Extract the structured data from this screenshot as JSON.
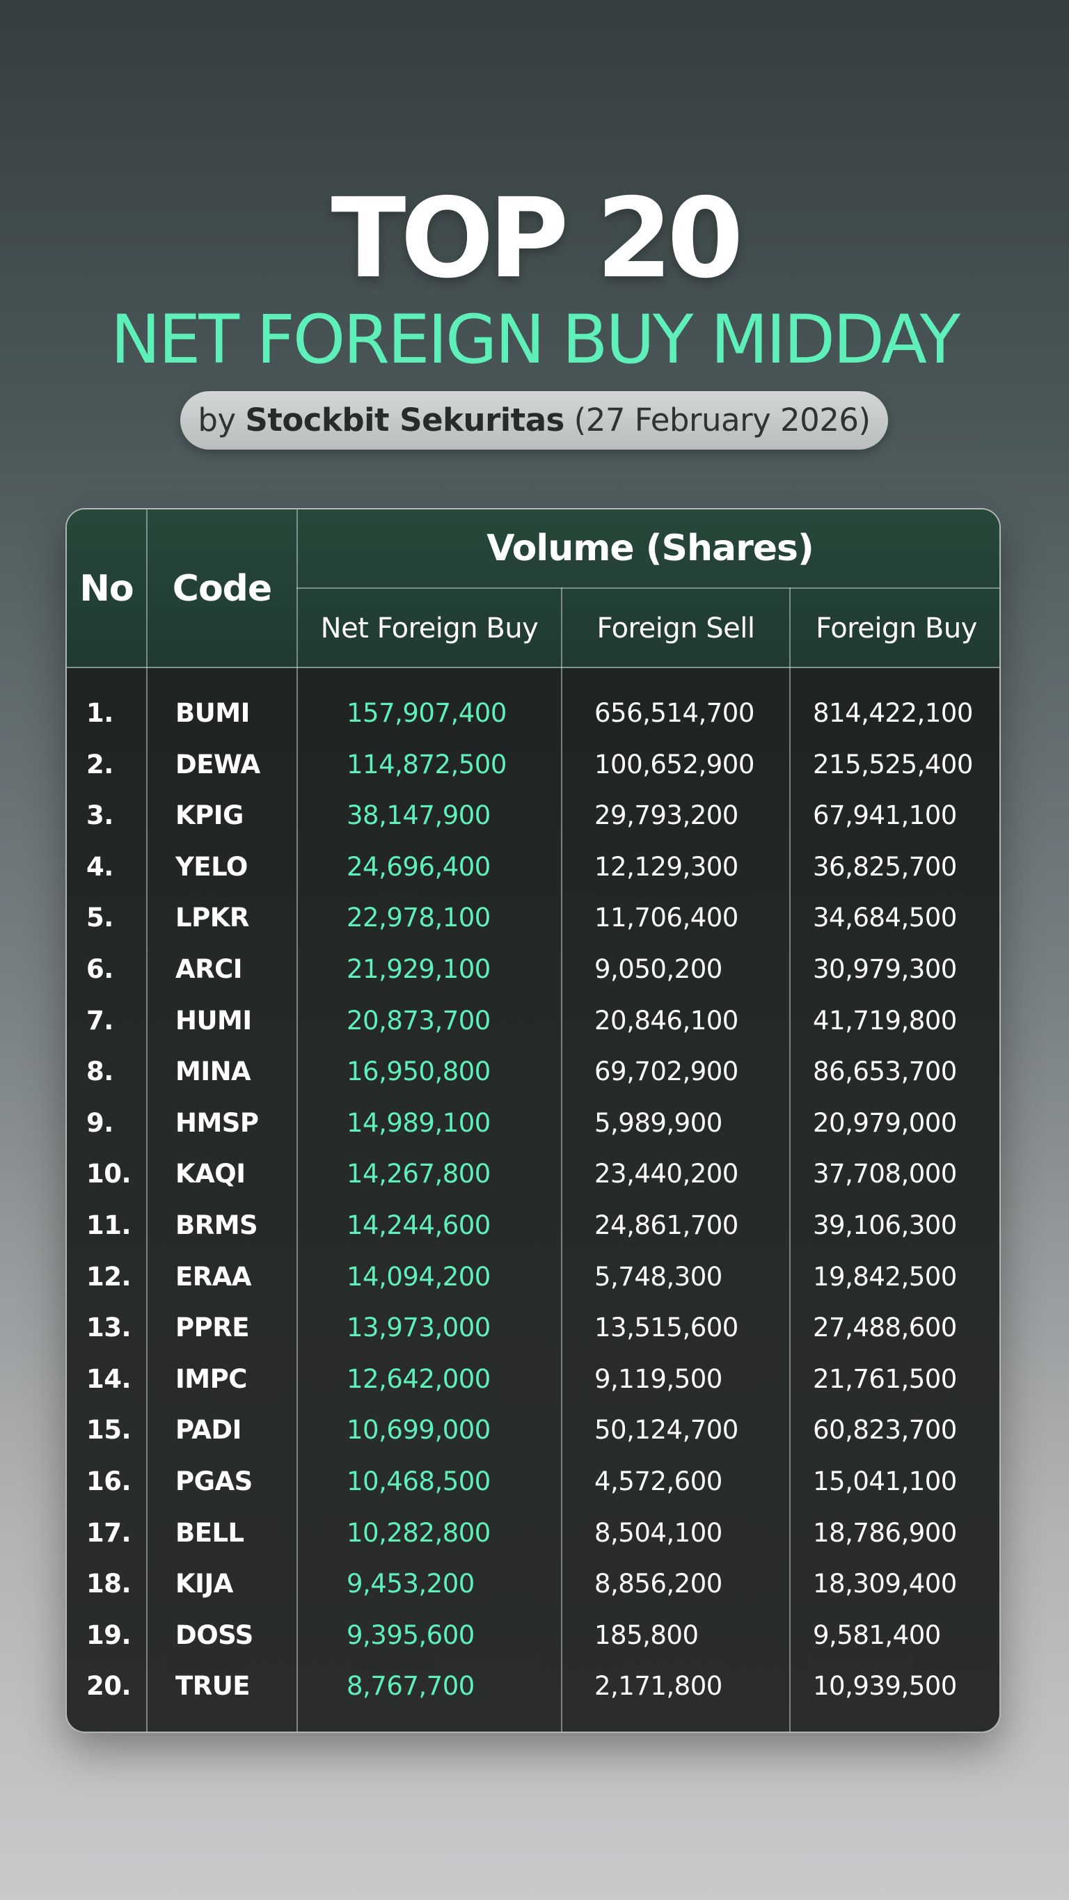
{
  "header": {
    "title": "TOP 20",
    "subtitle": "NET FOREIGN BUY MIDDAY",
    "byline_prefix": "by",
    "byline_brand": "Stockbit Sekuritas",
    "byline_date": "(27 February 2026)"
  },
  "colors": {
    "accent": "#5ff0b9",
    "header_bg": "#24443a",
    "table_bg": "#222625"
  },
  "table": {
    "col_no": "No",
    "col_code": "Code",
    "group_label": "Volume (Shares)",
    "col_net": "Net Foreign Buy",
    "col_sell": "Foreign Sell",
    "col_buy": "Foreign Buy",
    "rows": [
      {
        "no": "1.",
        "code": "BUMI",
        "net": "157,907,400",
        "sell": "656,514,700",
        "buy": "814,422,100"
      },
      {
        "no": "2.",
        "code": "DEWA",
        "net": "114,872,500",
        "sell": "100,652,900",
        "buy": "215,525,400"
      },
      {
        "no": "3.",
        "code": "KPIG",
        "net": "38,147,900",
        "sell": "29,793,200",
        "buy": "67,941,100"
      },
      {
        "no": "4.",
        "code": "YELO",
        "net": "24,696,400",
        "sell": "12,129,300",
        "buy": "36,825,700"
      },
      {
        "no": "5.",
        "code": "LPKR",
        "net": "22,978,100",
        "sell": "11,706,400",
        "buy": "34,684,500"
      },
      {
        "no": "6.",
        "code": "ARCI",
        "net": "21,929,100",
        "sell": "9,050,200",
        "buy": "30,979,300"
      },
      {
        "no": "7.",
        "code": "HUMI",
        "net": "20,873,700",
        "sell": "20,846,100",
        "buy": "41,719,800"
      },
      {
        "no": "8.",
        "code": "MINA",
        "net": "16,950,800",
        "sell": "69,702,900",
        "buy": "86,653,700"
      },
      {
        "no": "9.",
        "code": "HMSP",
        "net": "14,989,100",
        "sell": "5,989,900",
        "buy": "20,979,000"
      },
      {
        "no": "10.",
        "code": "KAQI",
        "net": "14,267,800",
        "sell": "23,440,200",
        "buy": "37,708,000"
      },
      {
        "no": "11.",
        "code": "BRMS",
        "net": "14,244,600",
        "sell": "24,861,700",
        "buy": "39,106,300"
      },
      {
        "no": "12.",
        "code": "ERAA",
        "net": "14,094,200",
        "sell": "5,748,300",
        "buy": "19,842,500"
      },
      {
        "no": "13.",
        "code": "PPRE",
        "net": "13,973,000",
        "sell": "13,515,600",
        "buy": "27,488,600"
      },
      {
        "no": "14.",
        "code": "IMPC",
        "net": "12,642,000",
        "sell": "9,119,500",
        "buy": "21,761,500"
      },
      {
        "no": "15.",
        "code": "PADI",
        "net": "10,699,000",
        "sell": "50,124,700",
        "buy": "60,823,700"
      },
      {
        "no": "16.",
        "code": "PGAS",
        "net": "10,468,500",
        "sell": "4,572,600",
        "buy": "15,041,100"
      },
      {
        "no": "17.",
        "code": "BELL",
        "net": "10,282,800",
        "sell": "8,504,100",
        "buy": "18,786,900"
      },
      {
        "no": "18.",
        "code": "KIJA",
        "net": "9,453,200",
        "sell": "8,856,200",
        "buy": "18,309,400"
      },
      {
        "no": "19.",
        "code": "DOSS",
        "net": "9,395,600",
        "sell": "185,800",
        "buy": "9,581,400"
      },
      {
        "no": "20.",
        "code": "TRUE",
        "net": "8,767,700",
        "sell": "2,171,800",
        "buy": "10,939,500"
      }
    ]
  }
}
